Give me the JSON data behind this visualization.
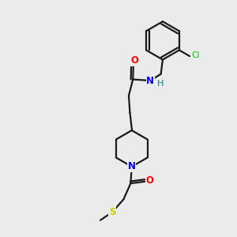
{
  "background_color": "#ebebeb",
  "bond_color": "#1a1a1a",
  "atom_colors": {
    "O": "#ff0000",
    "N": "#0000ff",
    "H": "#008080",
    "Cl": "#00cc00",
    "S": "#cccc00"
  },
  "figsize": [
    3.0,
    3.0
  ],
  "dpi": 100
}
